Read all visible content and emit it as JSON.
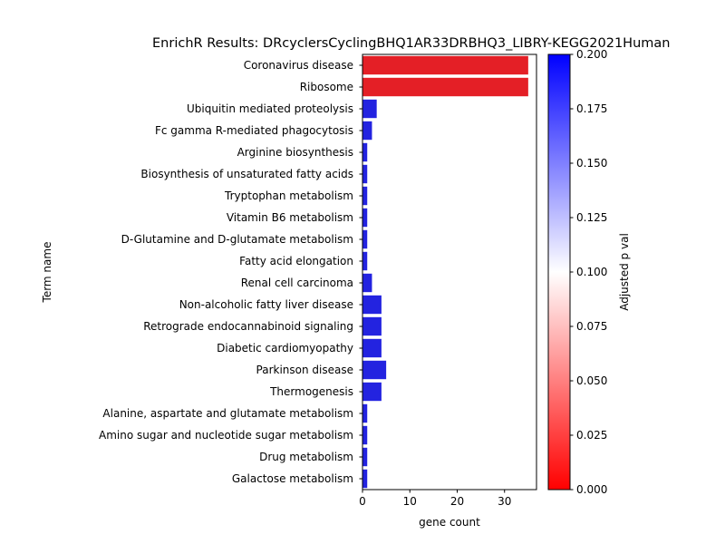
{
  "chart_data": {
    "type": "bar",
    "orientation": "horizontal",
    "title": "EnrichR Results: DRcyclersCyclingBHQ1AR33DRBHQ3_LIBRY-KEGG2021Human",
    "xlabel": "gene count",
    "ylabel": "Term name",
    "xlim": [
      0,
      36.75
    ],
    "xticks": [
      0,
      10,
      20,
      30
    ],
    "grid": false,
    "categories": [
      "Coronavirus disease",
      "Ribosome",
      "Ubiquitin mediated proteolysis",
      "Fc gamma R-mediated phagocytosis",
      "Arginine biosynthesis",
      "Biosynthesis of unsaturated fatty acids",
      "Tryptophan metabolism",
      "Vitamin B6 metabolism",
      "D-Glutamine and D-glutamate metabolism",
      "Fatty acid elongation",
      "Renal cell carcinoma",
      "Non-alcoholic fatty liver disease",
      "Retrograde endocannabinoid signaling",
      "Diabetic cardiomyopathy",
      "Parkinson disease",
      "Thermogenesis",
      "Alanine, aspartate and glutamate metabolism",
      "Amino sugar and nucleotide sugar metabolism",
      "Drug metabolism",
      "Galactose metabolism"
    ],
    "values": [
      35,
      35,
      3,
      2,
      1,
      1,
      1,
      1,
      1,
      1,
      2,
      4,
      4,
      4,
      5,
      4,
      1,
      1,
      1,
      1
    ],
    "colors": [
      "#e41f26",
      "#e41f26",
      "#2323e0",
      "#2323e0",
      "#2323e0",
      "#2323e0",
      "#2323e0",
      "#2323e0",
      "#2323e0",
      "#2323e0",
      "#2323e0",
      "#2323e0",
      "#2323e0",
      "#2323e0",
      "#2323e0",
      "#2323e0",
      "#2323e0",
      "#2323e0",
      "#2323e0",
      "#2323e0"
    ],
    "colorbar": {
      "label": "Adjusted p val",
      "range": [
        0,
        0.2
      ],
      "ticks": [
        "0.000",
        "0.025",
        "0.050",
        "0.075",
        "0.100",
        "0.125",
        "0.150",
        "0.175",
        "0.200"
      ],
      "colors": [
        "#ff0000",
        "#ffffff",
        "#0000ff"
      ]
    }
  }
}
